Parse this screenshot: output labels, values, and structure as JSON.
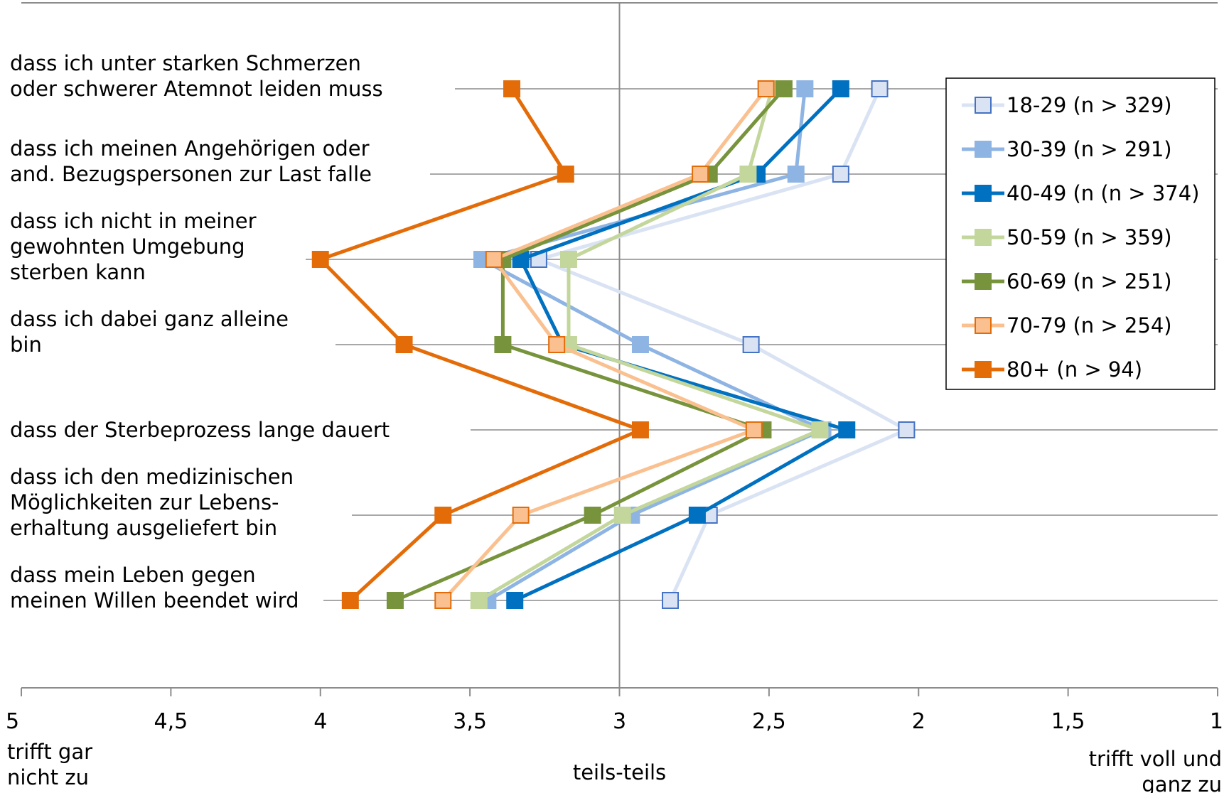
{
  "chart_data": {
    "type": "line",
    "orientation": "horizontal",
    "categories": [
      [
        "dass ich unter starken Schmerzen",
        "oder schwerer Atemnot leiden muss"
      ],
      [
        "dass ich meinen Angehörigen oder",
        "and. Bezugspersonen zur Last falle"
      ],
      [
        "dass ich nicht in meiner",
        "gewohnten Umgebung",
        "sterben kann"
      ],
      [
        "dass ich dabei ganz alleine",
        "bin"
      ],
      [
        "dass der Sterbeprozess lange dauert"
      ],
      [
        "dass ich den medizinischen",
        "Möglichkeiten zur Lebens-",
        "erhaltung ausgeliefert bin"
      ],
      [
        "dass mein Leben gegen",
        "meinen Willen beendet wird"
      ]
    ],
    "x_axis": {
      "min": 1,
      "max": 5,
      "reversed": true,
      "ticks": [
        5,
        4.5,
        4,
        3.5,
        3,
        2.5,
        2,
        1.5,
        1
      ],
      "tick_labels": [
        "5",
        "4,5",
        "4",
        "3,5",
        "3",
        "2,5",
        "2",
        "1,5",
        "1"
      ],
      "left_label": [
        "trifft gar",
        "nicht zu"
      ],
      "center_label": "teils-teils",
      "right_label": [
        "trifft voll und",
        "ganz zu"
      ]
    },
    "grid": true,
    "legend_position": "right",
    "series": [
      {
        "name": "18-29 (n > 329)",
        "color": "#dae3f3",
        "marker_fill": "#dae3f3",
        "marker_stroke": "#4472c4",
        "values": [
          2.13,
          2.26,
          3.27,
          2.56,
          2.04,
          2.7,
          2.83
        ]
      },
      {
        "name": "30-39 (n > 291)",
        "color": "#8eb4e3",
        "marker_fill": "#8eb4e3",
        "marker_stroke": "#8eb4e3",
        "values": [
          2.38,
          2.41,
          3.46,
          2.93,
          2.32,
          2.96,
          3.44
        ]
      },
      {
        "name": "40-49 (n (n > 374)",
        "color": "#0070c0",
        "marker_fill": "#0070c0",
        "marker_stroke": "#0070c0",
        "values": [
          2.26,
          2.54,
          3.33,
          3.19,
          2.24,
          2.74,
          3.35
        ]
      },
      {
        "name": "50-59 (n > 359)",
        "color": "#c3d69b",
        "marker_fill": "#c3d69b",
        "marker_stroke": "#c3d69b",
        "values": [
          2.49,
          2.57,
          3.17,
          3.17,
          2.33,
          2.99,
          3.47
        ]
      },
      {
        "name": "60-69 (n > 251)",
        "color": "#77933c",
        "marker_fill": "#77933c",
        "marker_stroke": "#77933c",
        "values": [
          2.45,
          2.7,
          3.39,
          3.39,
          2.52,
          3.09,
          3.75
        ]
      },
      {
        "name": "70-79 (n > 254)",
        "color": "#fac090",
        "marker_fill": "#fac090",
        "marker_stroke": "#e36c09",
        "values": [
          2.51,
          2.73,
          3.42,
          3.21,
          2.55,
          3.33,
          3.59
        ]
      },
      {
        "name": "80+ (n > 94)",
        "color": "#e36c09",
        "marker_fill": "#e36c09",
        "marker_stroke": "#e36c09",
        "values": [
          3.36,
          3.18,
          4.0,
          3.72,
          2.93,
          3.59,
          3.9
        ]
      }
    ]
  }
}
